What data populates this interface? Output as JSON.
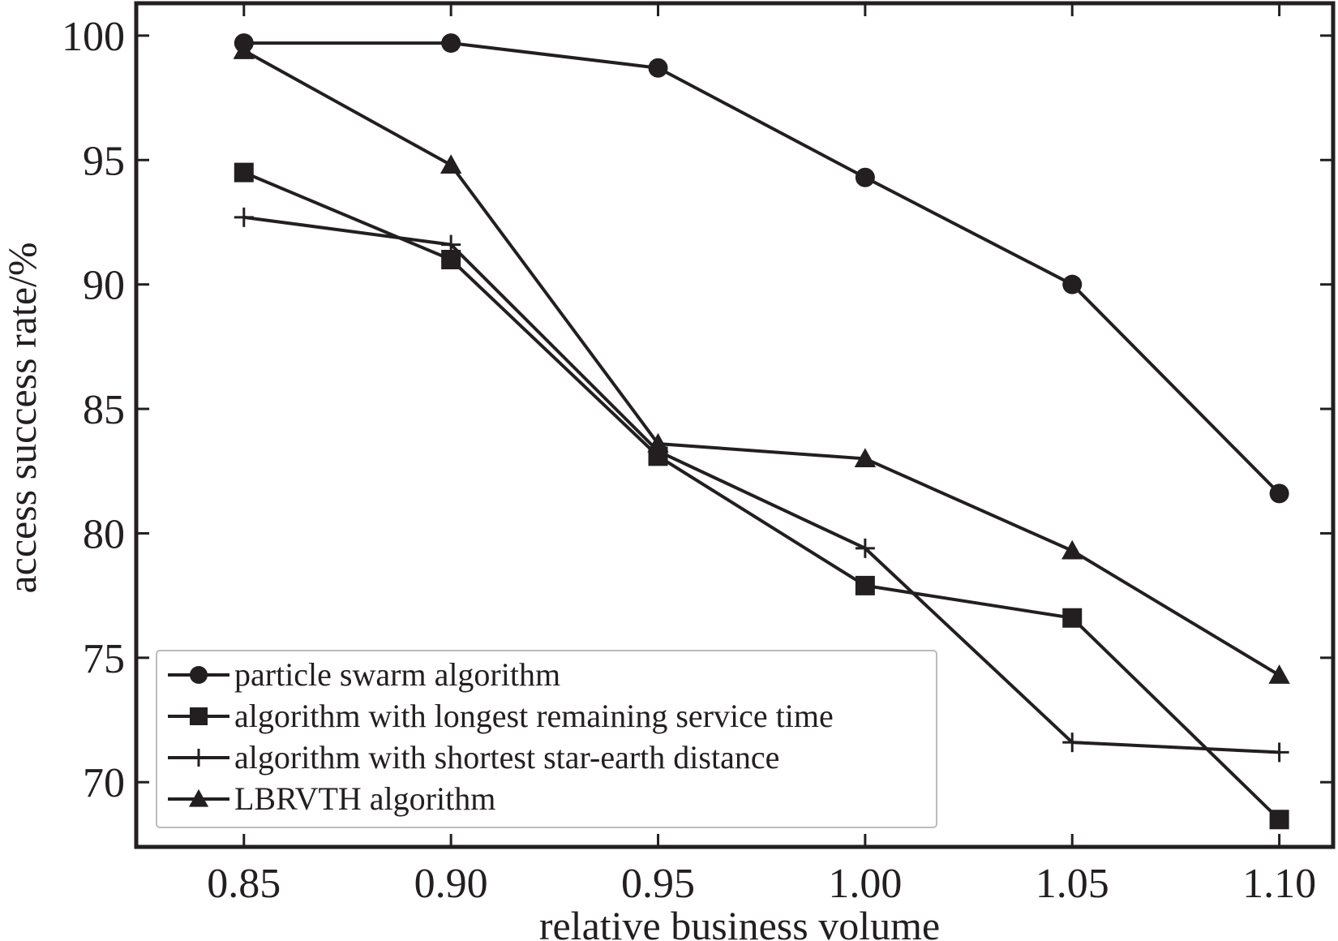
{
  "chart_data": {
    "type": "line",
    "xlabel": "relative business volume",
    "ylabel": "access success rate/%",
    "x": [
      0.85,
      0.9,
      0.95,
      1.0,
      1.05,
      1.1
    ],
    "x_tick_labels": [
      "0.85",
      "0.90",
      "0.95",
      "1.00",
      "1.05",
      "1.10"
    ],
    "y_ticks": [
      70,
      75,
      80,
      85,
      90,
      95,
      100
    ],
    "y_tick_labels": [
      "70",
      "75",
      "80",
      "85",
      "90",
      "95",
      "100"
    ],
    "xlim": [
      0.824,
      1.113
    ],
    "ylim": [
      67.4,
      101.3
    ],
    "grid": false,
    "legend_position": "bottom-left",
    "colors": {
      "line": "#231f20"
    },
    "series": [
      {
        "name": "particle swarm algorithm",
        "marker": "circle",
        "values": [
          99.7,
          99.7,
          98.7,
          94.3,
          90.0,
          81.6
        ]
      },
      {
        "name": "algorithm with longest remaining service time",
        "marker": "square",
        "values": [
          94.5,
          91.0,
          83.1,
          77.9,
          76.6,
          68.5
        ]
      },
      {
        "name": "algorithm with shortest star-earth distance",
        "marker": "plus",
        "values": [
          92.7,
          91.6,
          83.3,
          79.4,
          71.6,
          71.2
        ]
      },
      {
        "name": "LBRVTH algorithm",
        "marker": "triangle",
        "values": [
          99.4,
          94.8,
          83.6,
          83.0,
          79.3,
          74.3
        ]
      }
    ]
  }
}
